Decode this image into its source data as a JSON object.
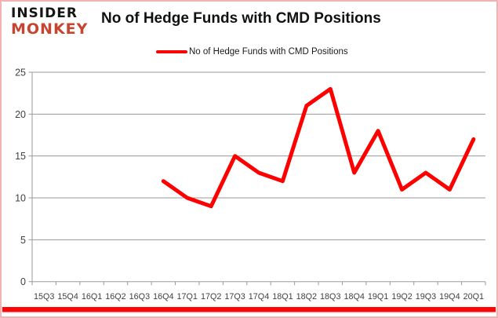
{
  "header": {
    "logo_line1": "INSIDER",
    "logo_line2": "MONKEY",
    "title": "No of Hedge Funds with CMD Positions"
  },
  "legend": {
    "label": "No of Hedge Funds with CMD Positions"
  },
  "colors": {
    "line": "#FF0000",
    "logo_accent": "#C7452F",
    "border_pink": "#F2B2B2",
    "bottom_bar": "#FE0505",
    "grid": "#9A9A9A",
    "tick_text": "#404040",
    "title_text": "#111111"
  },
  "chart_data": {
    "type": "line",
    "title": "No of Hedge Funds with CMD Positions",
    "xlabel": "",
    "ylabel": "",
    "ylim": [
      0,
      25
    ],
    "yticks": [
      0,
      5,
      10,
      15,
      20,
      25
    ],
    "grid": true,
    "legend_position": "top",
    "categories": [
      "15Q3",
      "15Q4",
      "16Q1",
      "16Q2",
      "16Q3",
      "16Q4",
      "17Q1",
      "17Q2",
      "17Q3",
      "17Q4",
      "18Q1",
      "18Q2",
      "18Q3",
      "18Q4",
      "19Q1",
      "19Q2",
      "19Q3",
      "19Q4",
      "20Q1"
    ],
    "series": [
      {
        "name": "No of Hedge Funds with CMD Positions",
        "color": "#FF0000",
        "values": [
          null,
          null,
          null,
          null,
          null,
          12,
          10,
          9,
          15,
          13,
          12,
          21,
          23,
          13,
          18,
          11,
          13,
          11,
          17
        ]
      }
    ]
  }
}
